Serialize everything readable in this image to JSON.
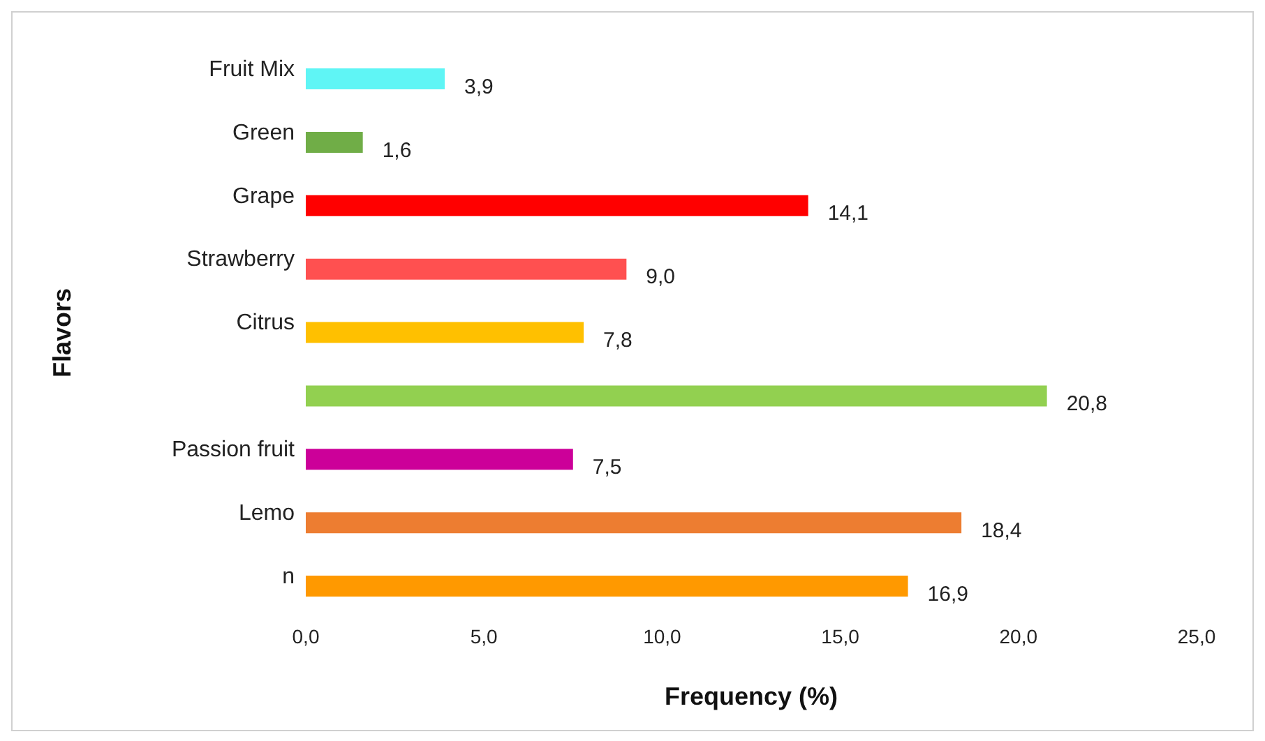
{
  "chart_data": {
    "type": "bar",
    "orientation": "horizontal",
    "xlabel": "Frequency (%)",
    "ylabel": "Flavors",
    "categories": [
      "Fruit Mix",
      "Green",
      "Grape",
      "Strawberry",
      "Citrus",
      null,
      "Passion fruit",
      "Lemo",
      "n"
    ],
    "values": [
      3.9,
      1.6,
      14.1,
      9.0,
      7.8,
      20.8,
      7.5,
      18.4,
      16.9
    ],
    "value_labels": [
      "3,9",
      "1,6",
      "14,1",
      "9,0",
      "7,8",
      "20,8",
      "7,5",
      "18,4",
      "16,9"
    ],
    "colors": [
      "#5ff5f5",
      "#70ad47",
      "#ff0000",
      "#ff5050",
      "#ffc000",
      "#92d050",
      "#cc0099",
      "#ed7d31",
      "#ff9900"
    ],
    "xlim": [
      0,
      25
    ],
    "xticks": [
      {
        "value": 0,
        "label": "0,0"
      },
      {
        "value": 5,
        "label": "5,0"
      },
      {
        "value": 10,
        "label": "10,0"
      },
      {
        "value": 15,
        "label": "15,0"
      },
      {
        "value": 20,
        "label": "20,0"
      },
      {
        "value": 25,
        "label": "25,0"
      }
    ],
    "grid": false,
    "legend": false
  }
}
